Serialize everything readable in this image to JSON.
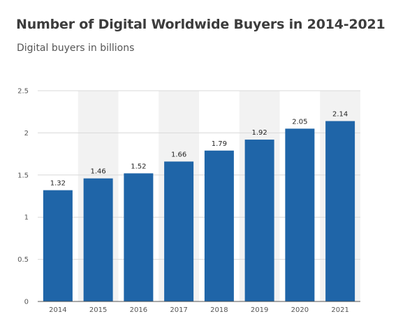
{
  "chart_data": {
    "type": "bar",
    "title": "Number of Digital Worldwide Buyers in 2014-2021",
    "subtitle": "Digital buyers in billions",
    "categories": [
      "2014",
      "2015",
      "2016",
      "2017",
      "2018",
      "2019",
      "2020",
      "2021"
    ],
    "values": [
      1.32,
      1.46,
      1.52,
      1.66,
      1.79,
      1.92,
      2.05,
      2.14
    ],
    "value_labels": [
      "1.32",
      "1.46",
      "1.52",
      "1.66",
      "1.79",
      "1.92",
      "2.05",
      "2.14"
    ],
    "xlabel": "",
    "ylabel": "",
    "ylim": [
      0,
      2.5
    ],
    "yticks": [
      0,
      0.5,
      1,
      1.5,
      2,
      2.5
    ],
    "ytick_labels": [
      "0",
      "0.5",
      "1",
      "1.5",
      "2",
      "2.5"
    ],
    "grid": true,
    "alternating_column_shading": true,
    "colors": {
      "bar": "#1f65a8",
      "grid": "#d9d9d9",
      "band": "#f2f2f2",
      "axis": "#555555"
    }
  }
}
